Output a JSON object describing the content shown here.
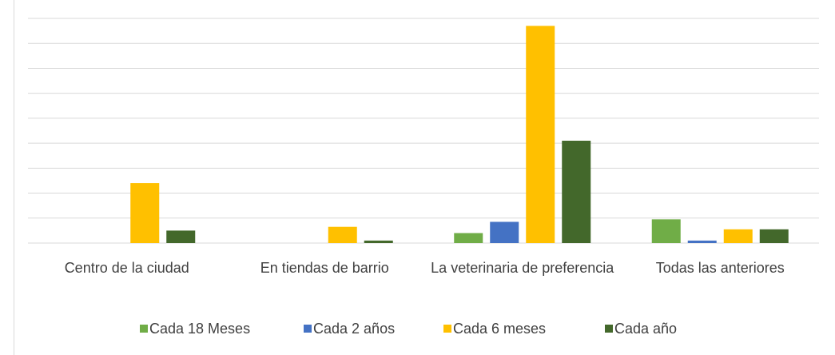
{
  "chart_data": {
    "type": "bar",
    "categories": [
      "Centro de la ciudad",
      "En tiendas de barrio",
      "La veterinaria de preferencia",
      "Todas las anteriores"
    ],
    "series": [
      {
        "name": "Cada 18 Meses",
        "color": "#70ad47",
        "values": [
          0,
          0,
          0.4,
          0.95
        ]
      },
      {
        "name": "Cada 2 años",
        "color": "#4472c4",
        "values": [
          0,
          0,
          0.85,
          0.1
        ]
      },
      {
        "name": "Cada 6 meses",
        "color": "#ffc000",
        "values": [
          2.4,
          0.65,
          8.7,
          0.55
        ]
      },
      {
        "name": "Cada año",
        "color": "#43682b",
        "values": [
          0.5,
          0.1,
          4.1,
          0.55
        ]
      }
    ],
    "ylim": [
      0,
      9
    ],
    "yticks": [
      0,
      1,
      2,
      3,
      4,
      5,
      6,
      7,
      8,
      9
    ],
    "grid": true,
    "legend": "bottom"
  }
}
